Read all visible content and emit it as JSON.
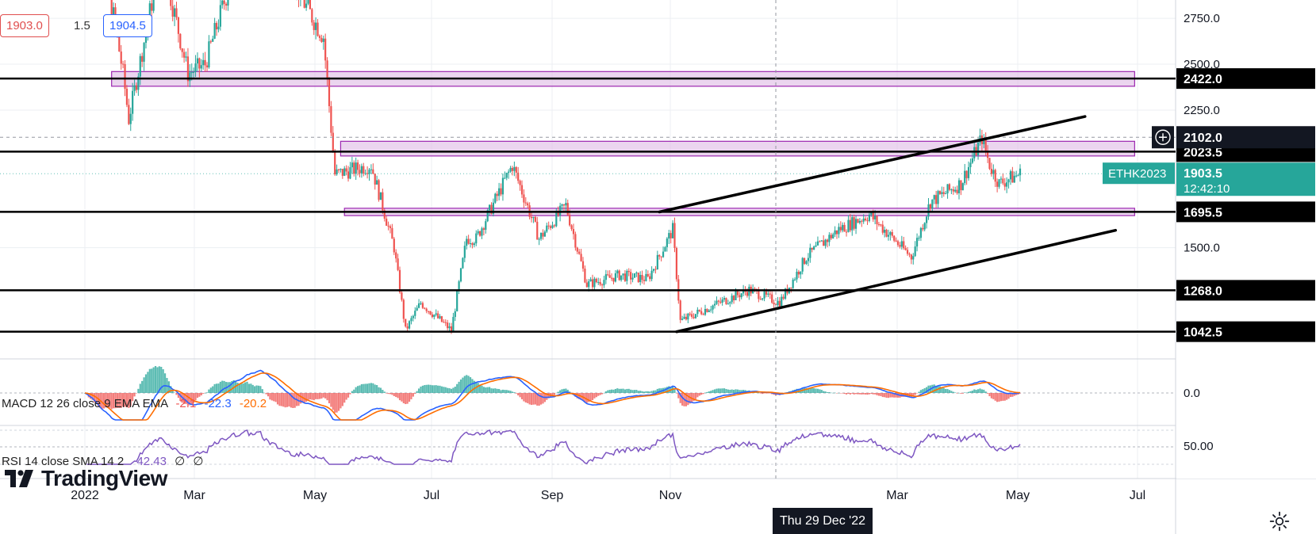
{
  "header": {
    "bid": "1903.0",
    "spread": "1.5",
    "ask": "1904.5"
  },
  "symbol_tag": "ETHK2023",
  "countdown": "12:42:10",
  "crosshair": {
    "date_label": "Thu 29 Dec '22",
    "price_label": "2102.0"
  },
  "macd": {
    "label": "MACD 12 26 close 9 EMA EMA",
    "hist": "-2.1",
    "macd": "-22.3",
    "signal": "-20.2"
  },
  "rsi": {
    "label": "RSI 14 close SMA 14 2",
    "value": "42.43",
    "extra1": "∅",
    "extra2": "∅"
  },
  "branding": "TradingView",
  "colors": {
    "up": "#26a69a",
    "down": "#ef5350",
    "macd_line": "#2962ff",
    "signal_line": "#ff6d00",
    "rsi_line": "#7e57c2",
    "zone_fill": "#e1bee7",
    "zone_border": "#9c27b0",
    "last_price": "#26a69a"
  },
  "icons": [
    "plus-circle-icon",
    "gear-icon"
  ],
  "chart_data": {
    "type": "candlestick",
    "symbol": "ETHK2023",
    "x_ticks": [
      "2022",
      "Mar",
      "May",
      "Jul",
      "Sep",
      "Nov",
      "Mar",
      "May",
      "Jul"
    ],
    "y_ticks": [
      "2750.0",
      "2500.0",
      "2250.0",
      "1500.0"
    ],
    "ylim": [
      920,
      2850
    ],
    "horizontal_levels": [
      2422.0,
      2023.5,
      1695.5,
      1268.0,
      1042.5
    ],
    "level_labels": [
      "2422.0",
      "2023.5",
      "1695.5",
      "1268.0",
      "1042.5"
    ],
    "last_price": "1903.5",
    "crosshair_price": 2102.0,
    "zones": [
      {
        "from_date": "2022-01-15",
        "to_date": "2023-07-05",
        "low": 2380,
        "high": 2460
      },
      {
        "from_date": "2022-05-15",
        "to_date": "2023-07-05",
        "low": 2000,
        "high": 2080
      },
      {
        "from_date": "2022-05-17",
        "to_date": "2023-07-05",
        "low": 1675,
        "high": 1715
      }
    ],
    "trendlines": [
      {
        "from": [
          "2022-10-29",
          1695
        ],
        "to": [
          "2023-06-09",
          2215
        ]
      },
      {
        "from": [
          "2022-11-07",
          1042
        ],
        "to": [
          "2023-06-25",
          1595
        ]
      }
    ],
    "price_path": [
      [
        "2022-01-01",
        3700
      ],
      [
        "2022-01-21",
        2450
      ],
      [
        "2022-01-24",
        2200
      ],
      [
        "2022-02-10",
        3100
      ],
      [
        "2022-02-24",
        2450
      ],
      [
        "2022-03-05",
        2500
      ],
      [
        "2022-04-02",
        3450
      ],
      [
        "2022-04-25",
        2850
      ],
      [
        "2022-05-06",
        2650
      ],
      [
        "2022-05-12",
        1900
      ],
      [
        "2022-05-31",
        1950
      ],
      [
        "2022-06-12",
        1500
      ],
      [
        "2022-06-18",
        1050
      ],
      [
        "2022-06-26",
        1200
      ],
      [
        "2022-07-12",
        1050
      ],
      [
        "2022-07-20",
        1550
      ],
      [
        "2022-07-25",
        1550
      ],
      [
        "2022-08-13",
        1950
      ],
      [
        "2022-08-27",
        1550
      ],
      [
        "2022-09-10",
        1730
      ],
      [
        "2022-09-21",
        1300
      ],
      [
        "2022-10-08",
        1350
      ],
      [
        "2022-10-23",
        1330
      ],
      [
        "2022-11-05",
        1600
      ],
      [
        "2022-11-09",
        1100
      ],
      [
        "2022-11-25",
        1180
      ],
      [
        "2022-12-15",
        1270
      ],
      [
        "2022-12-31",
        1200
      ],
      [
        "2023-01-14",
        1450
      ],
      [
        "2023-01-31",
        1600
      ],
      [
        "2023-02-16",
        1680
      ],
      [
        "2023-03-10",
        1450
      ],
      [
        "2023-03-20",
        1750
      ],
      [
        "2023-04-05",
        1850
      ],
      [
        "2023-04-16",
        2100
      ],
      [
        "2023-04-20",
        1950
      ],
      [
        "2023-04-25",
        1850
      ],
      [
        "2023-05-06",
        1903.5
      ]
    ]
  }
}
